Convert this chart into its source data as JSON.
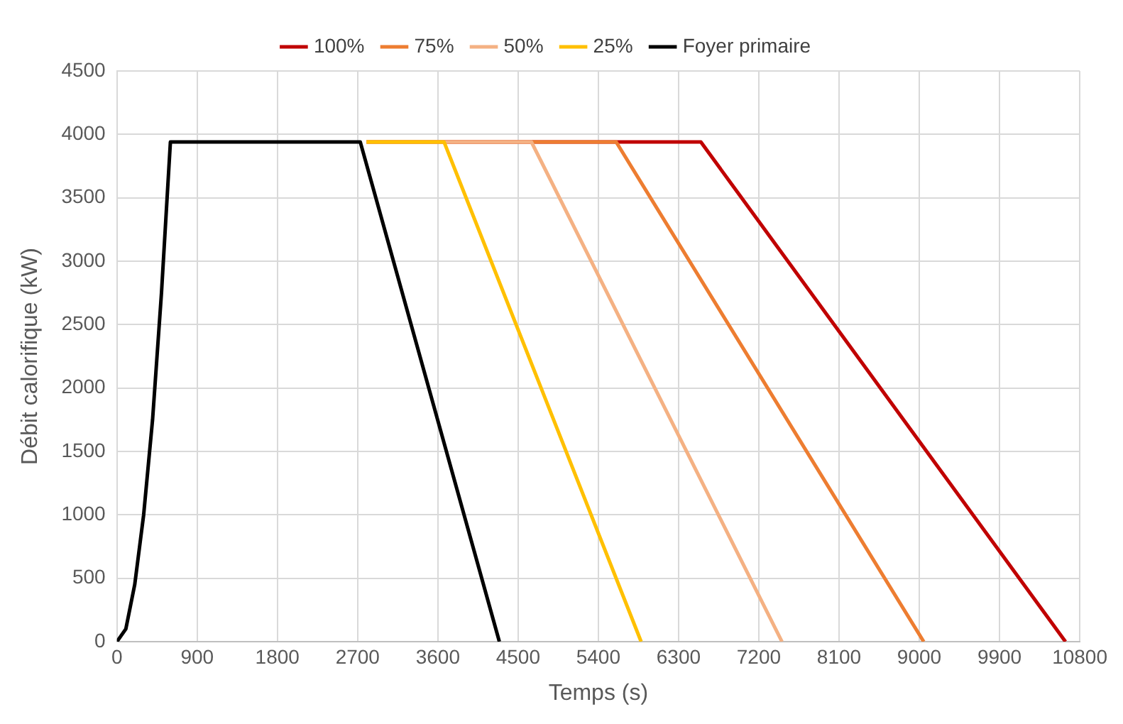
{
  "chart_data": {
    "type": "line",
    "xlabel": "Temps (s)",
    "ylabel": "Débit calorifique (kW)",
    "xlim": [
      0,
      10800
    ],
    "xticks": [
      0,
      900,
      1800,
      2700,
      3600,
      4500,
      5400,
      6300,
      7200,
      8100,
      9000,
      9900,
      10800
    ],
    "ylim": [
      0,
      4500
    ],
    "yticks": [
      0,
      500,
      1000,
      1500,
      2000,
      2500,
      3000,
      3500,
      4000,
      4500
    ],
    "grid": true,
    "legend": "top",
    "marker": "none",
    "line_style": "solid",
    "series": [
      {
        "name": "100%",
        "color": "#c00000",
        "x": [
          2800,
          6550,
          10640
        ],
        "values": [
          3940,
          3940,
          0
        ]
      },
      {
        "name": "75%",
        "color": "#ed7d31",
        "x": [
          2800,
          5600,
          9050
        ],
        "values": [
          3940,
          3940,
          0
        ]
      },
      {
        "name": "50%",
        "color": "#f4b183",
        "x": [
          2800,
          4650,
          7460
        ],
        "values": [
          3940,
          3940,
          0
        ]
      },
      {
        "name": "25%",
        "color": "#ffc000",
        "x": [
          2800,
          3670,
          5880
        ],
        "values": [
          3940,
          3940,
          0
        ]
      },
      {
        "name": "Foyer primaire",
        "color": "#000000",
        "x": [
          0,
          100,
          200,
          300,
          400,
          500,
          600,
          2730,
          4290
        ],
        "values": [
          0,
          100,
          450,
          1000,
          1750,
          2750,
          3940,
          3940,
          0
        ]
      }
    ]
  }
}
